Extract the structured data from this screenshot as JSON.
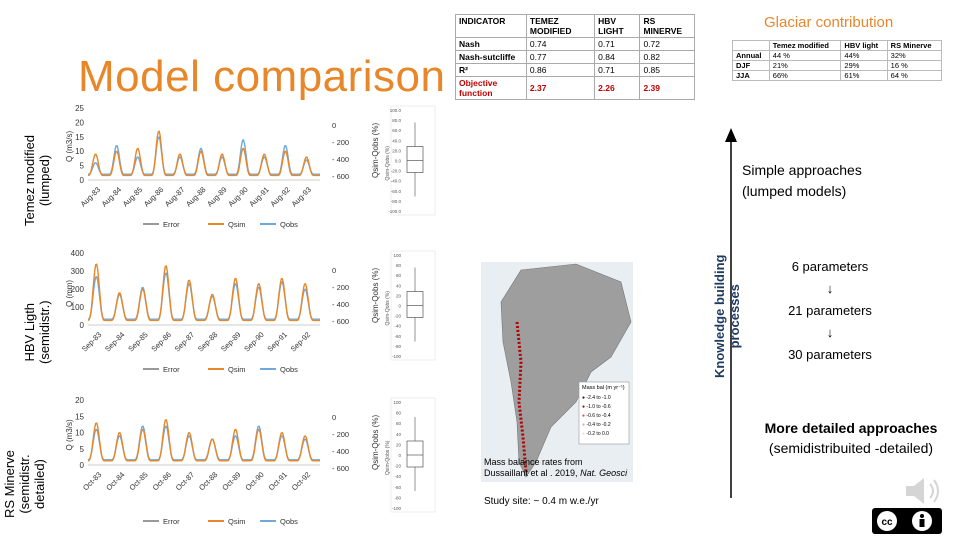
{
  "title": "Model comparison",
  "row_labels": [
    {
      "line1": "Temez modified",
      "line2": "(lumped)"
    },
    {
      "line1": "HBV Ligth",
      "line2": "(semidistr.)"
    },
    {
      "line1": "RS Minerve",
      "line2": "(semidistr.",
      "line3": "detailed)"
    }
  ],
  "indicator_table": {
    "headers": [
      "INDICATOR",
      "TEMEZ MODIFIED",
      "HBV LIGHT",
      "RS MINERVE"
    ],
    "rows": [
      [
        "Nash",
        "0.74",
        "0.71",
        "0.72"
      ],
      [
        "Nash-sutcliffe",
        "0.77",
        "0.84",
        "0.82"
      ],
      [
        "R²",
        "0.86",
        "0.71",
        "0.85"
      ],
      [
        "Objective function",
        "2.37",
        "2.26",
        "2.39"
      ]
    ]
  },
  "glacier": {
    "title": "Glaciar contribution",
    "headers": [
      "",
      "Temez modified",
      "HBV light",
      "RS Minerve"
    ],
    "rows": [
      [
        "Annual",
        "44 %",
        "44%",
        "32%"
      ],
      [
        "DJF",
        "21%",
        "29%",
        "16 %"
      ],
      [
        "JJA",
        "66%",
        "61%",
        "64 %"
      ]
    ]
  },
  "knowledge_label": {
    "line1": "Knowledge building",
    "line2": "processes"
  },
  "simple": {
    "line1": "Simple approaches",
    "line2": "(lumped models)"
  },
  "params": [
    "6 parameters",
    "↓",
    "21 parameters",
    "↓",
    "30 parameters"
  ],
  "detailed": {
    "line1": "More detailed approaches",
    "line2": "(semidistribuited -detailed)"
  },
  "map": {
    "caption1": "Mass balance rates from",
    "caption2": "Dussaillant et al . 2019,",
    "caption_cite": "Nat. Geosci",
    "legend_title": "Mass bal (m yr⁻¹)",
    "legend": [
      "-2.4 to -1.0",
      "-1.0 to -0.6",
      "-0.6 to -0.4",
      "-0.4 to -0.2",
      "-0.2 to 0.0"
    ],
    "study": "Study site: ~ 0.4 m w.e./yr"
  },
  "chart_data": [
    {
      "type": "line",
      "ylabel": "Q (m3/s)",
      "y2label": "Qsim-Qobs (%)",
      "ylim": [
        0,
        25
      ],
      "yticks": [
        0,
        5,
        10,
        15,
        20,
        25
      ],
      "y2ticks": [
        "0",
        "- 200",
        "- 400",
        "- 600"
      ],
      "categories": [
        "Aug-83",
        "Aug-84",
        "Aug-85",
        "Aug-86",
        "Aug-87",
        "Aug-88",
        "Aug-89",
        "Aug-90",
        "Aug-91",
        "Aug-92",
        "Aug-93"
      ],
      "legend": [
        "Error",
        "Qsim",
        "Qobs"
      ],
      "peaks_sim": [
        9,
        10,
        11,
        17,
        9,
        10,
        9,
        11,
        9,
        10,
        8
      ],
      "peaks_obs": [
        6,
        12,
        8,
        15,
        8,
        11,
        8,
        14,
        8,
        12,
        7
      ],
      "box": {
        "yticks": [
          "100.0",
          "80.0",
          "60.0",
          "40.0",
          "20.0",
          "0.0",
          "-20.0",
          "-40.0",
          "-60.0",
          "-80.0",
          "-100.0"
        ],
        "ylabel": "Qsim-Qobs (%)"
      }
    },
    {
      "type": "line",
      "ylabel": "Q (mm)",
      "y2label": "Qsim-Qobs (%)",
      "ylim": [
        0,
        400
      ],
      "yticks": [
        0,
        100,
        200,
        300,
        400
      ],
      "y2ticks": [
        "0",
        "- 200",
        "- 400",
        "- 600"
      ],
      "categories": [
        "Sep-83",
        "Sep-84",
        "Sep-85",
        "Sep-86",
        "Sep-87",
        "Sep-88",
        "Sep-89",
        "Sep-90",
        "Sep-91",
        "Sep-92"
      ],
      "legend": [
        "Error",
        "Qsim",
        "Qobs"
      ],
      "peaks_sim": [
        340,
        180,
        200,
        330,
        250,
        170,
        260,
        230,
        260,
        230
      ],
      "peaks_obs": [
        270,
        170,
        210,
        290,
        230,
        160,
        230,
        210,
        240,
        200
      ],
      "box": {
        "yticks": [
          "100",
          "80",
          "60",
          "40",
          "20",
          "0",
          "-20",
          "-40",
          "-60",
          "-80",
          "-100"
        ],
        "ylabel": "Qsim-Qobs (%)"
      }
    },
    {
      "type": "line",
      "ylabel": "Q (m3/s)",
      "y2label": "Qsim-Qobs (%)",
      "ylim": [
        0,
        20
      ],
      "yticks": [
        0,
        5,
        10,
        15,
        20
      ],
      "y2ticks": [
        "0",
        "- 200",
        "- 400",
        "- 600"
      ],
      "categories": [
        "Oct-83",
        "Oct-84",
        "Oct-85",
        "Oct-86",
        "Oct-87",
        "Oct-88",
        "Oct-89",
        "Oct-90",
        "Oct-91",
        "Oct-92"
      ],
      "legend": [
        "Error",
        "Qsim",
        "Qobs"
      ],
      "peaks_sim": [
        13,
        10,
        11,
        14,
        10,
        8,
        11,
        11,
        10,
        9
      ],
      "peaks_obs": [
        11,
        9,
        12,
        12,
        9,
        8,
        9,
        12,
        9,
        8
      ],
      "box": {
        "yticks": [
          "100",
          "80",
          "60",
          "40",
          "20",
          "0",
          "-20",
          "-40",
          "-60",
          "-80",
          "-100"
        ],
        "ylabel": "Qsim-Qobs (%)"
      }
    }
  ],
  "colors": {
    "title": "#e8872a",
    "sim": "#e8872a",
    "obs": "#6fa8dc",
    "error": "#999999",
    "objective": "#c00000"
  }
}
